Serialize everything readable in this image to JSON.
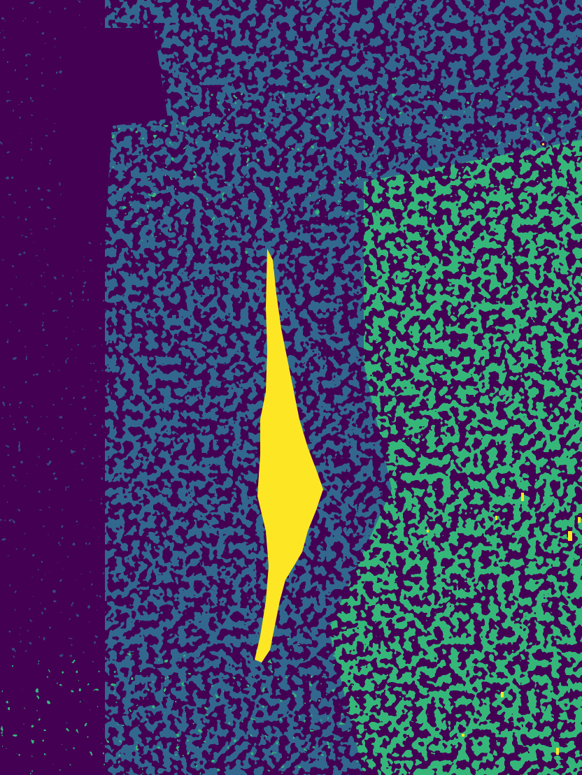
{
  "map": {
    "type": "classified-raster",
    "palette": "viridis",
    "classes": [
      {
        "id": 0,
        "color": "#440154"
      },
      {
        "id": 1,
        "color": "#31688e"
      },
      {
        "id": 2,
        "color": "#35b779"
      },
      {
        "id": 3,
        "color": "#fde725"
      }
    ]
  }
}
